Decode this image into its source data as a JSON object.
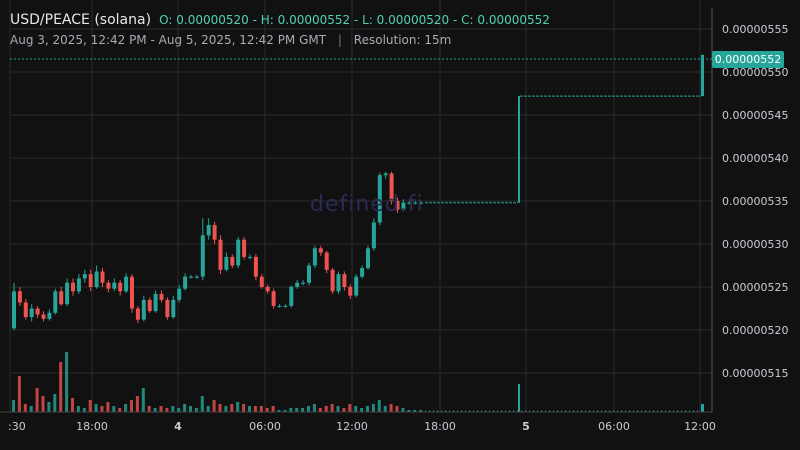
{
  "header": {
    "title": "USD/PEACE (solana)",
    "ohlc": "O: 0.00000520 - H: 0.00000552 - L: 0.00000520 - C: 0.00000552",
    "range": "Aug 3, 2025, 12:42 PM - Aug 5, 2025, 12:42 PM GMT",
    "separator": "|",
    "resolution": "Resolution: 15m"
  },
  "watermark": "defined.fi",
  "last_price": "0.00000552",
  "colors": {
    "up": "#26a69a",
    "down": "#ef5350",
    "background": "#111111",
    "grid": "#2b2b2b"
  },
  "chart_data": {
    "type": "candlestick",
    "title": "USD/PEACE (solana)",
    "x_tick_labels": [
      ":30",
      "18:00",
      "4",
      "06:00",
      "12:00",
      "18:00",
      "5",
      "06:00",
      "12:00"
    ],
    "y_tick_labels": [
      "0.00000555",
      "0.00000550",
      "0.00000545",
      "0.00000540",
      "0.00000535",
      "0.00000530",
      "0.00000525",
      "0.00000520",
      "0.00000515"
    ],
    "ylim": [
      5.1e-06,
      5.56e-06
    ],
    "grid": true,
    "candles": [
      {
        "o": 5.202,
        "c": 5.245,
        "h": 5.255,
        "l": 5.2,
        "v": 6
      },
      {
        "o": 5.245,
        "c": 5.232,
        "h": 5.25,
        "l": 5.228,
        "v": 18
      },
      {
        "o": 5.232,
        "c": 5.215,
        "h": 5.236,
        "l": 5.212,
        "v": 4
      },
      {
        "o": 5.215,
        "c": 5.225,
        "h": 5.23,
        "l": 5.21,
        "v": 3
      },
      {
        "o": 5.225,
        "c": 5.218,
        "h": 5.228,
        "l": 5.214,
        "v": 12
      },
      {
        "o": 5.218,
        "c": 5.213,
        "h": 5.222,
        "l": 5.21,
        "v": 8
      },
      {
        "o": 5.213,
        "c": 5.22,
        "h": 5.224,
        "l": 5.211,
        "v": 5
      },
      {
        "o": 5.22,
        "c": 5.245,
        "h": 5.248,
        "l": 5.218,
        "v": 9
      },
      {
        "o": 5.245,
        "c": 5.23,
        "h": 5.25,
        "l": 5.228,
        "v": 25
      },
      {
        "o": 5.23,
        "c": 5.255,
        "h": 5.26,
        "l": 5.228,
        "v": 30
      },
      {
        "o": 5.255,
        "c": 5.245,
        "h": 5.26,
        "l": 5.24,
        "v": 7
      },
      {
        "o": 5.245,
        "c": 5.26,
        "h": 5.265,
        "l": 5.242,
        "v": 3
      },
      {
        "o": 5.26,
        "c": 5.265,
        "h": 5.27,
        "l": 5.255,
        "v": 2
      },
      {
        "o": 5.265,
        "c": 5.25,
        "h": 5.27,
        "l": 5.245,
        "v": 6
      },
      {
        "o": 5.25,
        "c": 5.268,
        "h": 5.275,
        "l": 5.248,
        "v": 4
      },
      {
        "o": 5.268,
        "c": 5.255,
        "h": 5.272,
        "l": 5.25,
        "v": 3
      },
      {
        "o": 5.255,
        "c": 5.248,
        "h": 5.258,
        "l": 5.244,
        "v": 5
      },
      {
        "o": 5.248,
        "c": 5.255,
        "h": 5.26,
        "l": 5.245,
        "v": 3
      },
      {
        "o": 5.255,
        "c": 5.245,
        "h": 5.258,
        "l": 5.24,
        "v": 2
      },
      {
        "o": 5.245,
        "c": 5.262,
        "h": 5.266,
        "l": 5.243,
        "v": 4
      },
      {
        "o": 5.262,
        "c": 5.225,
        "h": 5.265,
        "l": 5.22,
        "v": 6
      },
      {
        "o": 5.225,
        "c": 5.212,
        "h": 5.228,
        "l": 5.208,
        "v": 8
      },
      {
        "o": 5.212,
        "c": 5.235,
        "h": 5.24,
        "l": 5.21,
        "v": 12
      },
      {
        "o": 5.235,
        "c": 5.222,
        "h": 5.238,
        "l": 5.22,
        "v": 3
      },
      {
        "o": 5.222,
        "c": 5.242,
        "h": 5.246,
        "l": 5.22,
        "v": 2
      },
      {
        "o": 5.242,
        "c": 5.235,
        "h": 5.246,
        "l": 5.232,
        "v": 3
      },
      {
        "o": 5.235,
        "c": 5.215,
        "h": 5.238,
        "l": 5.212,
        "v": 2
      },
      {
        "o": 5.215,
        "c": 5.235,
        "h": 5.24,
        "l": 5.213,
        "v": 3
      },
      {
        "o": 5.235,
        "c": 5.248,
        "h": 5.252,
        "l": 5.232,
        "v": 2
      },
      {
        "o": 5.248,
        "c": 5.262,
        "h": 5.266,
        "l": 5.246,
        "v": 4
      },
      {
        "o": 5.262,
        "c": 5.262,
        "h": 5.264,
        "l": 5.26,
        "v": 3
      },
      {
        "o": 5.262,
        "c": 5.262,
        "h": 5.264,
        "l": 5.26,
        "v": 2
      },
      {
        "o": 5.262,
        "c": 5.31,
        "h": 5.33,
        "l": 5.258,
        "v": 8
      },
      {
        "o": 5.31,
        "c": 5.322,
        "h": 5.33,
        "l": 5.305,
        "v": 3
      },
      {
        "o": 5.322,
        "c": 5.305,
        "h": 5.326,
        "l": 5.3,
        "v": 6
      },
      {
        "o": 5.305,
        "c": 5.27,
        "h": 5.31,
        "l": 5.265,
        "v": 4
      },
      {
        "o": 5.27,
        "c": 5.285,
        "h": 5.29,
        "l": 5.268,
        "v": 3
      },
      {
        "o": 5.285,
        "c": 5.275,
        "h": 5.288,
        "l": 5.272,
        "v": 4
      },
      {
        "o": 5.275,
        "c": 5.305,
        "h": 5.308,
        "l": 5.272,
        "v": 5
      },
      {
        "o": 5.305,
        "c": 5.285,
        "h": 5.308,
        "l": 5.282,
        "v": 4
      },
      {
        "o": 5.285,
        "c": 5.285,
        "h": 5.288,
        "l": 5.282,
        "v": 3
      },
      {
        "o": 5.285,
        "c": 5.262,
        "h": 5.288,
        "l": 5.258,
        "v": 3
      },
      {
        "o": 5.262,
        "c": 5.25,
        "h": 5.265,
        "l": 5.248,
        "v": 3
      },
      {
        "o": 5.25,
        "c": 5.245,
        "h": 5.253,
        "l": 5.242,
        "v": 2
      },
      {
        "o": 5.245,
        "c": 5.228,
        "h": 5.248,
        "l": 5.225,
        "v": 3
      },
      {
        "o": 5.228,
        "c": 5.228,
        "h": 5.23,
        "l": 5.226,
        "v": 1
      },
      {
        "o": 5.228,
        "c": 5.228,
        "h": 5.23,
        "l": 5.226,
        "v": 1
      },
      {
        "o": 5.228,
        "c": 5.25,
        "h": 5.252,
        "l": 5.226,
        "v": 2
      },
      {
        "o": 5.25,
        "c": 5.255,
        "h": 5.258,
        "l": 5.248,
        "v": 2
      },
      {
        "o": 5.255,
        "c": 5.255,
        "h": 5.258,
        "l": 5.252,
        "v": 2
      },
      {
        "o": 5.255,
        "c": 5.275,
        "h": 5.278,
        "l": 5.252,
        "v": 3
      },
      {
        "o": 5.275,
        "c": 5.295,
        "h": 5.298,
        "l": 5.272,
        "v": 4
      },
      {
        "o": 5.295,
        "c": 5.29,
        "h": 5.298,
        "l": 5.286,
        "v": 2
      },
      {
        "o": 5.29,
        "c": 5.27,
        "h": 5.292,
        "l": 5.266,
        "v": 3
      },
      {
        "o": 5.27,
        "c": 5.245,
        "h": 5.272,
        "l": 5.242,
        "v": 4
      },
      {
        "o": 5.245,
        "c": 5.265,
        "h": 5.268,
        "l": 5.242,
        "v": 3
      },
      {
        "o": 5.265,
        "c": 5.25,
        "h": 5.268,
        "l": 5.246,
        "v": 2
      },
      {
        "o": 5.25,
        "c": 5.24,
        "h": 5.253,
        "l": 5.236,
        "v": 4
      },
      {
        "o": 5.24,
        "c": 5.262,
        "h": 5.265,
        "l": 5.238,
        "v": 3
      },
      {
        "o": 5.262,
        "c": 5.272,
        "h": 5.275,
        "l": 5.26,
        "v": 2
      },
      {
        "o": 5.272,
        "c": 5.295,
        "h": 5.298,
        "l": 5.27,
        "v": 3
      },
      {
        "o": 5.295,
        "c": 5.325,
        "h": 5.33,
        "l": 5.292,
        "v": 4
      },
      {
        "o": 5.325,
        "c": 5.38,
        "h": 5.383,
        "l": 5.322,
        "v": 6
      },
      {
        "o": 5.38,
        "c": 5.382,
        "h": 5.384,
        "l": 5.376,
        "v": 3
      },
      {
        "o": 5.382,
        "c": 5.35,
        "h": 5.384,
        "l": 5.346,
        "v": 4
      },
      {
        "o": 5.35,
        "c": 5.34,
        "h": 5.354,
        "l": 5.336,
        "v": 3
      },
      {
        "o": 5.34,
        "c": 5.348,
        "h": 5.352,
        "l": 5.338,
        "v": 2
      },
      {
        "o": 5.348,
        "c": 5.348,
        "h": 5.35,
        "l": 5.346,
        "v": 1
      },
      {
        "o": 5.348,
        "c": 5.348,
        "h": 5.35,
        "l": 5.346,
        "v": 1
      },
      {
        "o": 5.348,
        "c": 5.348,
        "h": 5.35,
        "l": 5.346,
        "v": 1
      }
    ],
    "tail": {
      "flat1": 5.348,
      "jump1_to": 5.472,
      "jump1_volume": 14,
      "flat2": 5.472,
      "final_open": 5.472,
      "final_close": 5.52,
      "final_volume": 4
    }
  }
}
